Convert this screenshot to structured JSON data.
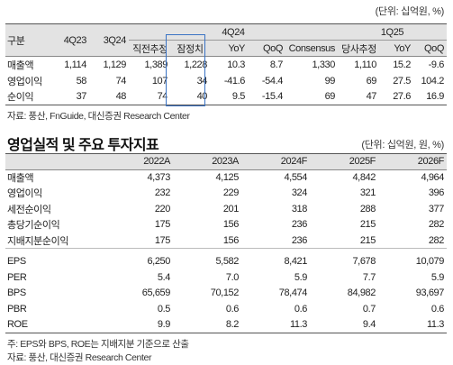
{
  "top_table": {
    "unit": "(단위: 십억원, %)",
    "header_row1": {
      "label": "구분",
      "c1": "4Q23",
      "c2": "3Q24",
      "group_4q24": "4Q24",
      "group_1q25": "1Q25"
    },
    "header_row2": {
      "c3": "직전추정",
      "c4": "잠정치",
      "c5": "YoY",
      "c6": "QoQ",
      "c7": "Consensus",
      "c8": "당사추정",
      "c9": "YoY",
      "c10": "QoQ"
    },
    "rows": [
      {
        "label": "매출액",
        "v": [
          "1,114",
          "1,129",
          "1,389",
          "1,228",
          "10.3",
          "8.7",
          "1,330",
          "1,110",
          "15.2",
          "-9.6"
        ]
      },
      {
        "label": "영업이익",
        "v": [
          "58",
          "74",
          "107",
          "34",
          "-41.6",
          "-54.4",
          "99",
          "69",
          "27.5",
          "104.2"
        ]
      },
      {
        "label": "순이익",
        "v": [
          "37",
          "48",
          "74",
          "40",
          "9.5",
          "-15.4",
          "69",
          "47",
          "27.6",
          "16.9"
        ]
      }
    ],
    "source": "자료: 풍산, FnGuide, 대신증권 Research Center"
  },
  "bottom_table": {
    "title": "영업실적 및 주요 투자지표",
    "unit": "(단위: 십억원, 원, %)",
    "columns": [
      "2022A",
      "2023A",
      "2024F",
      "2025F",
      "2026F"
    ],
    "rows_a": [
      {
        "label": "매출액",
        "v": [
          "4,373",
          "4,125",
          "4,554",
          "4,842",
          "4,964"
        ]
      },
      {
        "label": "영업이익",
        "v": [
          "232",
          "229",
          "324",
          "321",
          "396"
        ]
      },
      {
        "label": "세전순이익",
        "v": [
          "220",
          "201",
          "318",
          "288",
          "377"
        ]
      },
      {
        "label": "총당기순이익",
        "v": [
          "175",
          "156",
          "236",
          "215",
          "282"
        ]
      },
      {
        "label": "지배지분순이익",
        "v": [
          "175",
          "156",
          "236",
          "215",
          "282"
        ]
      }
    ],
    "rows_b": [
      {
        "label": "EPS",
        "v": [
          "6,250",
          "5,582",
          "8,421",
          "7,678",
          "10,079"
        ]
      },
      {
        "label": "PER",
        "v": [
          "5.4",
          "7.0",
          "5.9",
          "7.7",
          "5.9"
        ]
      },
      {
        "label": "BPS",
        "v": [
          "65,659",
          "70,152",
          "78,474",
          "84,982",
          "93,697"
        ]
      },
      {
        "label": "PBR",
        "v": [
          "0.5",
          "0.6",
          "0.6",
          "0.7",
          "0.6"
        ]
      },
      {
        "label": "ROE",
        "v": [
          "9.9",
          "8.2",
          "11.3",
          "9.4",
          "11.3"
        ]
      }
    ],
    "note": "주: EPS와 BPS, ROE는 지배지분 기준으로 산출",
    "source": "자료: 풍산, 대신증권 Research Center"
  }
}
